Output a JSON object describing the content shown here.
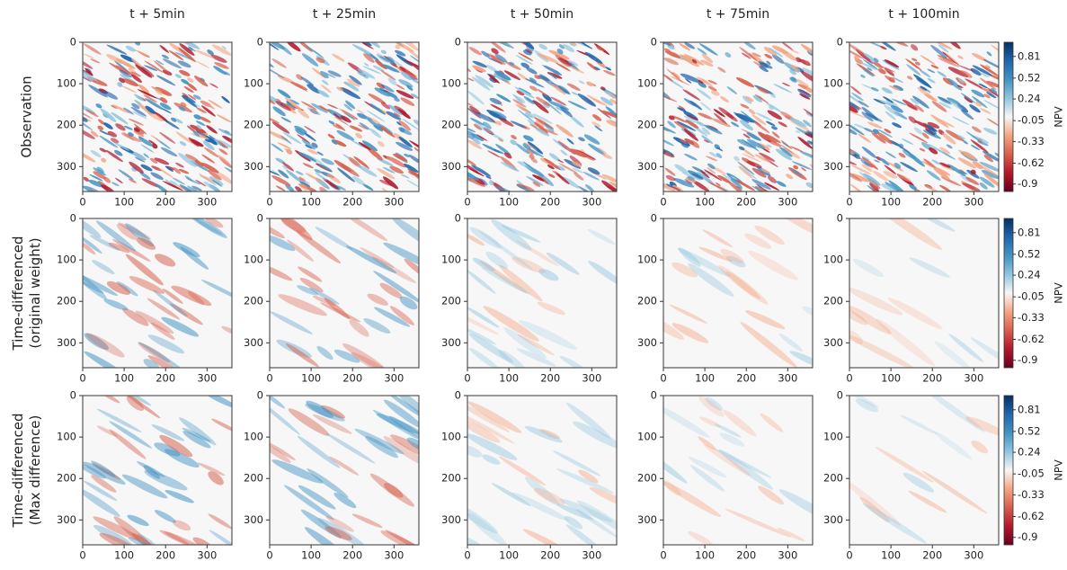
{
  "chart_data": {
    "type": "heatmap",
    "columns": [
      "t + 5min",
      "t + 25min",
      "t + 50min",
      "t + 75min",
      "t + 100min"
    ],
    "rows": [
      [
        "Observation"
      ],
      [
        "Time-differenced",
        "(original weight)"
      ],
      [
        "Time-differenced",
        "(Max difference)"
      ]
    ],
    "xlim": [
      0,
      360
    ],
    "ylim": [
      360,
      0
    ],
    "xticks": [
      0,
      100,
      200,
      300
    ],
    "yticks": [
      0,
      100,
      200,
      300
    ],
    "cmap": "RdBu",
    "colorbar": {
      "label": "NPV",
      "lim": [
        -1,
        1
      ],
      "ticks": [
        0.81,
        0.52,
        0.24,
        -0.05,
        -0.33,
        -0.62,
        -0.9
      ]
    }
  }
}
